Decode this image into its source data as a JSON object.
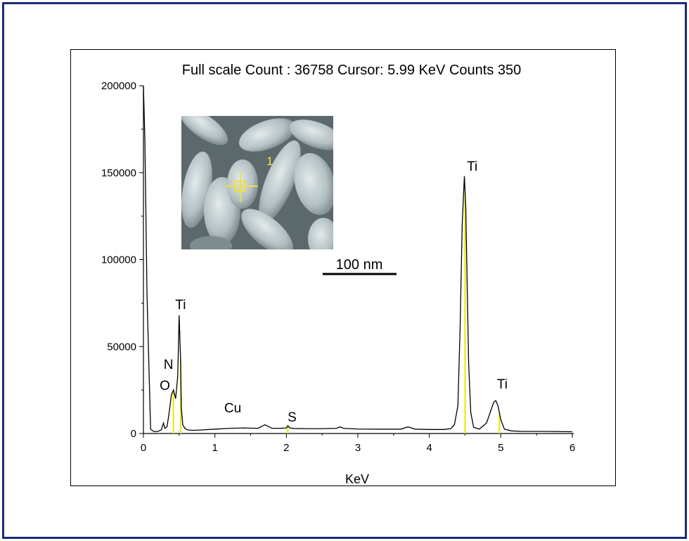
{
  "chart_data": {
    "type": "line",
    "title": "Full scale Count : 36758 Cursor: 5.99 KeV Counts 350",
    "xlabel": "KeV",
    "ylabel": "",
    "xlim": [
      0,
      6
    ],
    "ylim": [
      0,
      200000
    ],
    "xticks": [
      "0",
      "1",
      "2",
      "3",
      "4",
      "5",
      "6"
    ],
    "yticks": [
      "0",
      "50000",
      "100000",
      "150000",
      "200000"
    ],
    "grid": false,
    "series": [
      {
        "x": [
          0,
          0.02,
          0.05,
          0.1,
          0.15,
          0.2,
          0.25,
          0.28,
          0.3,
          0.33,
          0.36,
          0.39,
          0.42,
          0.45,
          0.48,
          0.5,
          0.52,
          0.53,
          0.55,
          0.58,
          0.62,
          0.7,
          0.8,
          1.0,
          1.2,
          1.4,
          1.6,
          1.7,
          1.75,
          1.8,
          1.9,
          2.0,
          2.02,
          2.05,
          2.1,
          2.3,
          2.5,
          2.7,
          2.75,
          2.8,
          3.0,
          3.3,
          3.6,
          3.7,
          3.75,
          3.8,
          4.0,
          4.2,
          4.3,
          4.35,
          4.4,
          4.43,
          4.46,
          4.49,
          4.51,
          4.53,
          4.55,
          4.58,
          4.62,
          4.7,
          4.8,
          4.85,
          4.9,
          4.93,
          4.96,
          5.0,
          5.05,
          5.15,
          5.3,
          5.6,
          6.0
        ],
        "y": [
          200000,
          170000,
          80000,
          2500,
          1000,
          1200,
          2000,
          6000,
          3000,
          4000,
          12000,
          22000,
          25000,
          20000,
          33000,
          68000,
          42000,
          15000,
          5000,
          3000,
          2000,
          1800,
          2000,
          2500,
          3000,
          3200,
          3000,
          5000,
          4000,
          3000,
          3000,
          3200,
          4500,
          3200,
          2900,
          2800,
          2800,
          3000,
          3800,
          3000,
          2600,
          2500,
          2500,
          3800,
          3200,
          2500,
          2300,
          2300,
          2800,
          5000,
          16000,
          60000,
          120000,
          148000,
          130000,
          85000,
          40000,
          12000,
          3500,
          2500,
          6000,
          12000,
          18000,
          19000,
          16000,
          8000,
          2500,
          1500,
          1200,
          1200,
          1000
        ]
      }
    ],
    "annotations": [
      {
        "text": "Ti",
        "x": 0.52
      },
      {
        "text": "N",
        "x": 0.35
      },
      {
        "text": "O",
        "x": 0.3
      },
      {
        "text": "Cu",
        "x": 1.25
      },
      {
        "text": "S",
        "x": 2.08
      },
      {
        "text": "Ti",
        "x": 4.6
      },
      {
        "text": "Ti",
        "x": 5.02
      }
    ],
    "markers": [
      0.42,
      0.52,
      2.02,
      4.5,
      4.98
    ],
    "inset": {
      "point_label": "1",
      "scale_bar_label": "100 nm"
    }
  },
  "colors": {
    "frame": "#1a2a7a",
    "line": "#000000",
    "marker": "#e8e800",
    "inset_bg": "#9aa6aa",
    "crosshair": "#f0e040"
  }
}
